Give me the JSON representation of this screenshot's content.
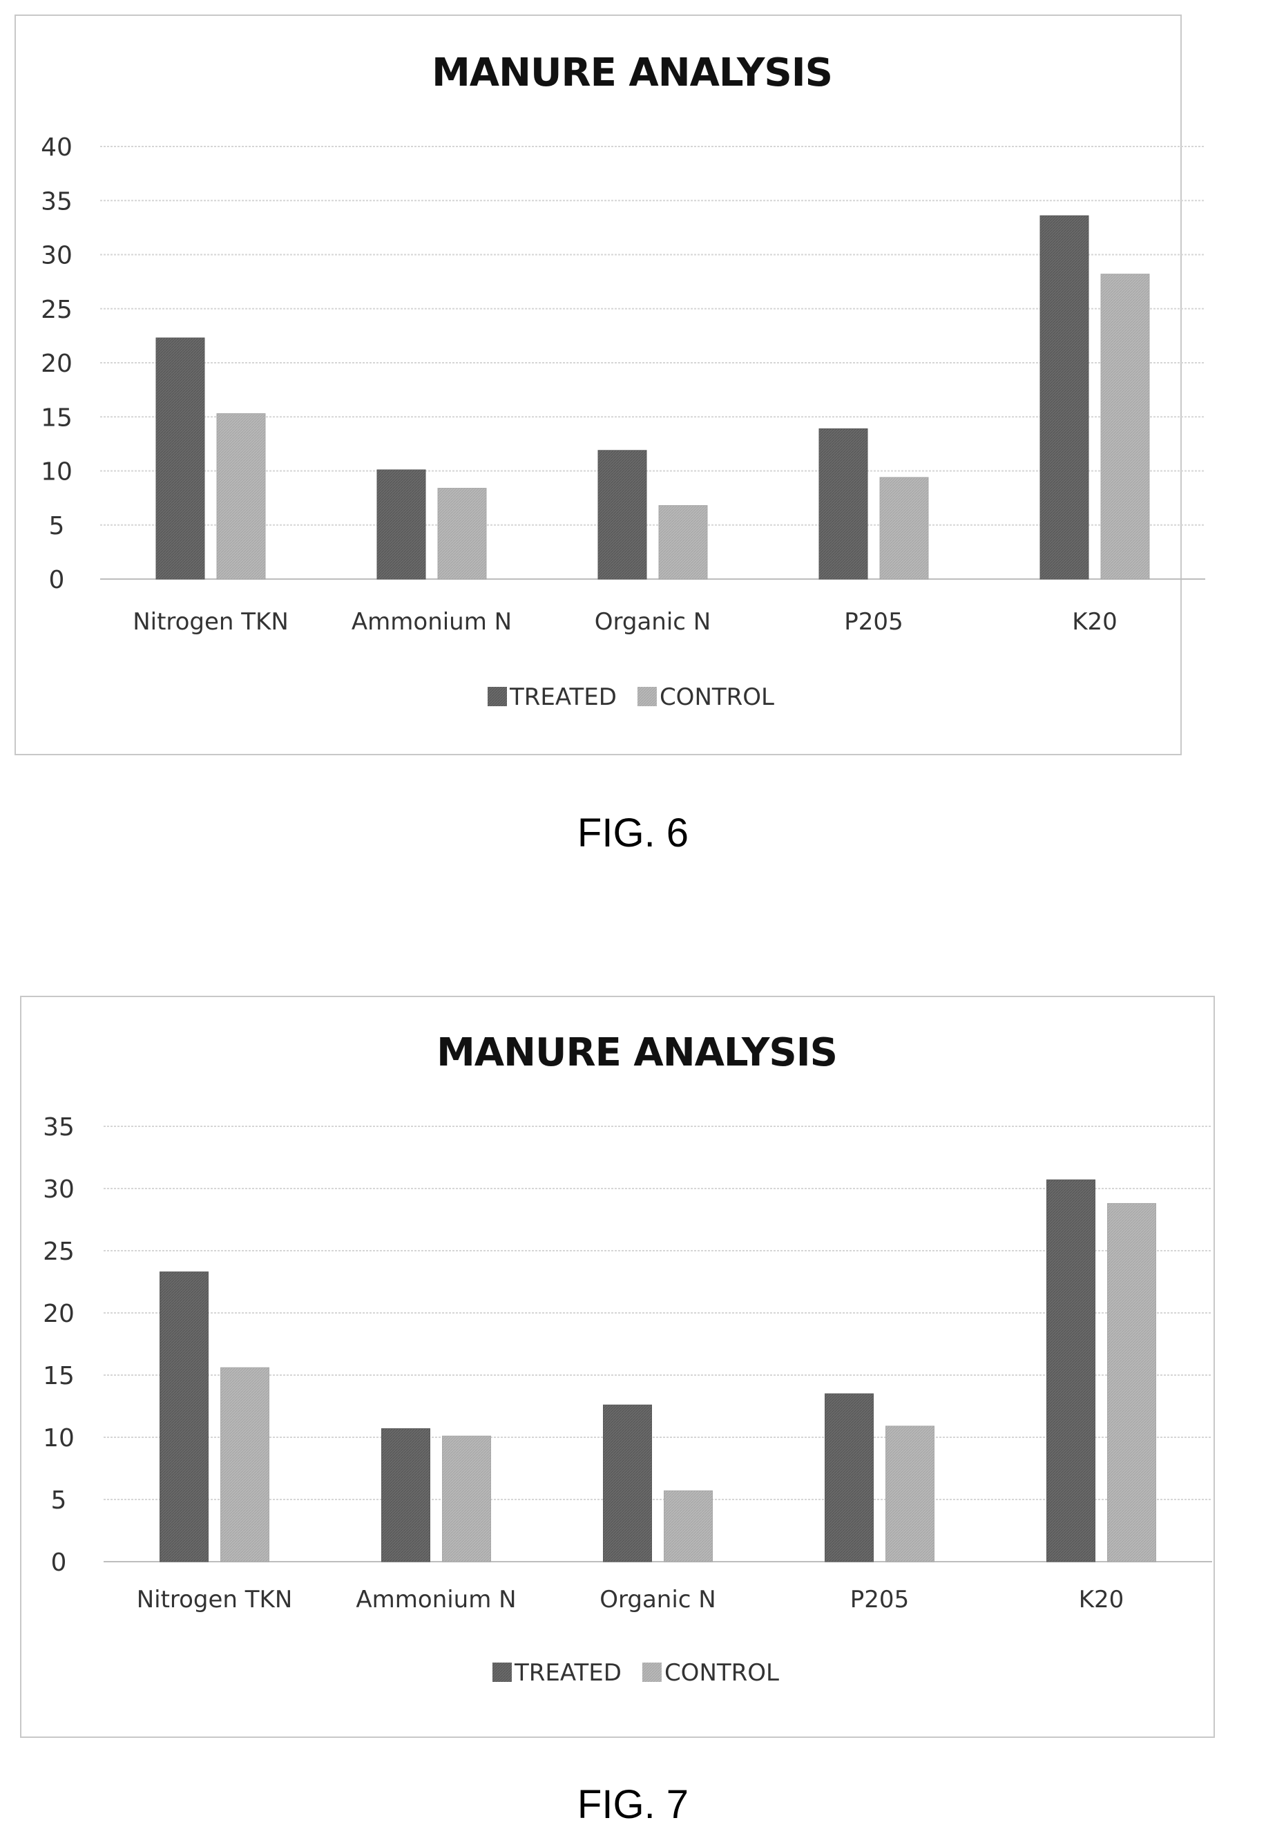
{
  "figures": [
    {
      "caption": "FIG. 6",
      "chart_data": {
        "type": "bar",
        "title": "MANURE ANALYSIS",
        "categories": [
          "Nitrogen TKN",
          "Ammonium N",
          "Organic N",
          "P205",
          "K20"
        ],
        "series": [
          {
            "name": "TREATED",
            "values": [
              22.3,
              10.1,
              11.9,
              13.9,
              33.6
            ],
            "color": "#6a6a6a"
          },
          {
            "name": "CONTROL",
            "values": [
              15.3,
              8.4,
              6.8,
              9.4,
              28.2
            ],
            "color": "#b8b8b8"
          }
        ],
        "yticks": [
          "0",
          "5",
          "10",
          "15",
          "20",
          "25",
          "30",
          "35",
          "40"
        ],
        "ylim": [
          0,
          40
        ],
        "grid": true,
        "legend": "bottom-center"
      }
    },
    {
      "caption": "FIG. 7",
      "chart_data": {
        "type": "bar",
        "title": "MANURE ANALYSIS",
        "categories": [
          "Nitrogen TKN",
          "Ammonium N",
          "Organic N",
          "P205",
          "K20"
        ],
        "series": [
          {
            "name": "TREATED",
            "values": [
              23.3,
              10.7,
              12.6,
              13.5,
              30.7
            ],
            "color": "#6a6a6a"
          },
          {
            "name": "CONTROL",
            "values": [
              15.6,
              10.1,
              5.7,
              10.9,
              28.8
            ],
            "color": "#b8b8b8"
          }
        ],
        "yticks": [
          "0",
          "5",
          "10",
          "15",
          "20",
          "25",
          "30",
          "35"
        ],
        "ylim": [
          0,
          35
        ],
        "grid": true,
        "legend": "bottom-center"
      }
    }
  ]
}
